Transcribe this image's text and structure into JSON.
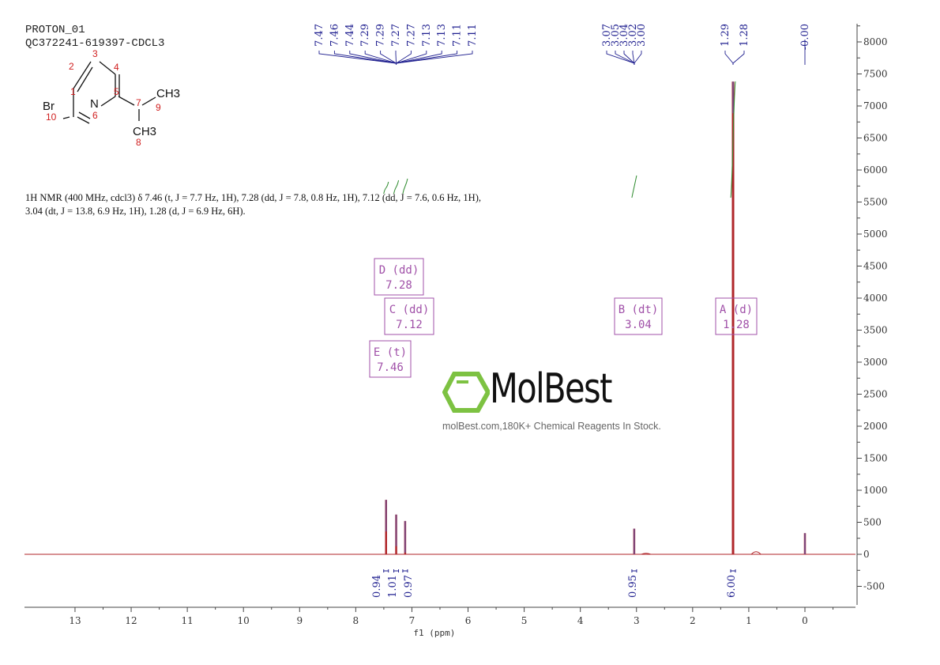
{
  "header": {
    "experiment": "PROTON_01",
    "sample": "QC372241-619397-CDCL3"
  },
  "structure": {
    "atoms": [
      {
        "label": "Br"
      },
      {
        "label": "N"
      },
      {
        "label": "CH3"
      },
      {
        "label": "CH3"
      }
    ],
    "numbers": [
      "1",
      "2",
      "3",
      "4",
      "5",
      "6",
      "7",
      "8",
      "9",
      "10"
    ]
  },
  "description": "1H NMR (400 MHz, cdcl3) δ 7.46 (t, J = 7.7 Hz, 1H), 7.28 (dd, J = 7.8, 0.8 Hz, 1H), 7.12 (dd, J = 7.6, 0.6 Hz, 1H), 3.04 (dt, J = 13.8, 6.9 Hz, 1H), 1.28 (d, J = 6.9 Hz, 6H).",
  "watermark": {
    "brand": "MolBest",
    "tagline": "molBest.com,180K+ Chemical Reagents In Stock.",
    "color": "#7dc242"
  },
  "chart_data": {
    "type": "line",
    "xlabel": "f1 (ppm)",
    "xlim": [
      13.9,
      -0.9
    ],
    "ylim": [
      -800,
      8300
    ],
    "x_reversed": true,
    "x_ticks": [
      "13",
      "12",
      "11",
      "10",
      "9",
      "8",
      "7",
      "6",
      "5",
      "4",
      "3",
      "2",
      "1",
      "0"
    ],
    "y_ticks": [
      "8000",
      "7500",
      "7000",
      "6500",
      "6000",
      "5500",
      "5000",
      "4500",
      "4000",
      "3500",
      "3000",
      "2500",
      "2000",
      "1500",
      "1000",
      "500",
      "0",
      "-500"
    ],
    "spectrum_color": "#b0262a",
    "peaks": [
      {
        "ppm": 7.46,
        "height": 850
      },
      {
        "ppm": 7.28,
        "height": 620
      },
      {
        "ppm": 7.12,
        "height": 520
      },
      {
        "ppm": 3.04,
        "height": 400
      },
      {
        "ppm": 2.83,
        "height": 15
      },
      {
        "ppm": 1.28,
        "height": 7380
      },
      {
        "ppm": 0.87,
        "height": 40
      },
      {
        "ppm": 0.0,
        "height": 330
      }
    ],
    "peak_labels": {
      "color": "#1f1f8f",
      "groups": [
        {
          "anchor": 7.28,
          "values": [
            "7.47",
            "7.46",
            "7.44",
            "7.29",
            "7.29",
            "7.27",
            "7.27",
            "7.13",
            "7.13",
            "7.11",
            "7.11"
          ]
        },
        {
          "anchor": 3.04,
          "values": [
            "3.07",
            "3.05",
            "3.04",
            "3.02",
            "3.00"
          ]
        },
        {
          "anchor": 1.28,
          "values": [
            "1.29",
            "1.28"
          ]
        },
        {
          "anchor": 0.0,
          "values": [
            "-0.00"
          ]
        }
      ]
    },
    "multiplets": [
      {
        "id": "D",
        "type": "dd",
        "shift": "7.28"
      },
      {
        "id": "C",
        "type": "dd",
        "shift": "7.12"
      },
      {
        "id": "E",
        "type": "t",
        "shift": "7.46"
      },
      {
        "id": "B",
        "type": "dt",
        "shift": "3.04"
      },
      {
        "id": "A",
        "type": "d",
        "shift": "1.28"
      }
    ],
    "integrals": [
      {
        "ppm": 7.46,
        "value": "0.94"
      },
      {
        "ppm": 7.28,
        "value": "1.01"
      },
      {
        "ppm": 7.12,
        "value": "0.97"
      },
      {
        "ppm": 3.04,
        "value": "0.95"
      },
      {
        "ppm": 1.28,
        "value": "6.00"
      }
    ],
    "integral_color": "#2e8b2e",
    "multiplet_color": "#a050a8"
  }
}
